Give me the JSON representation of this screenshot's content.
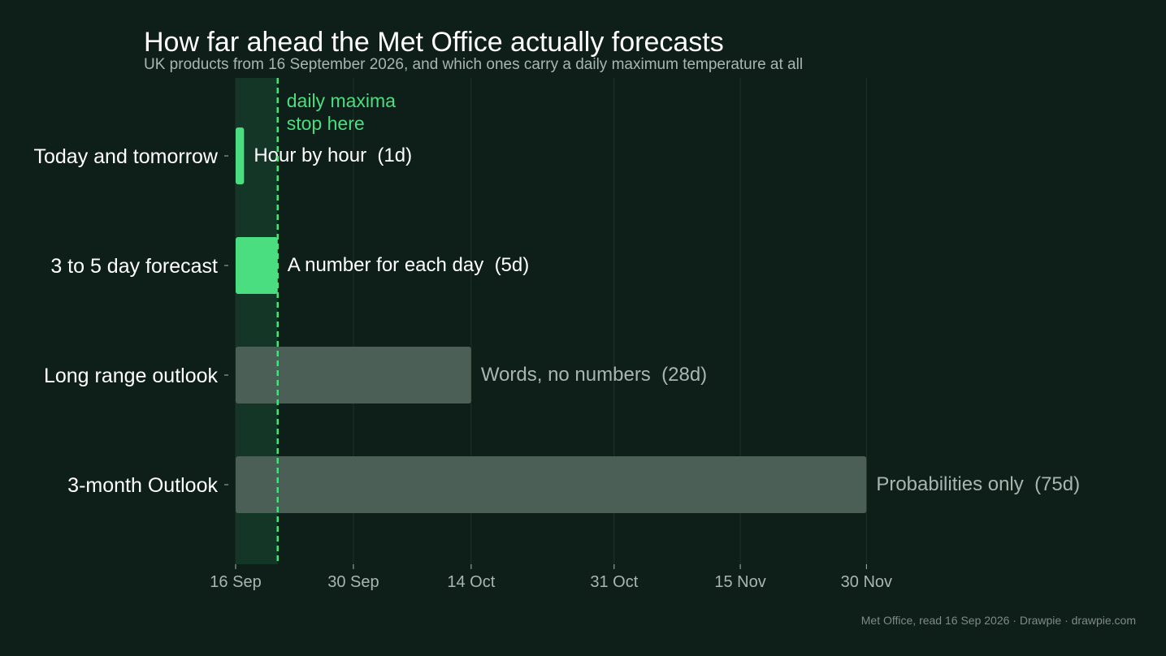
{
  "chart_data": {
    "type": "bar",
    "orientation": "horizontal",
    "title": "How far ahead the Met Office actually forecasts",
    "subtitle": "UK products from 16 September 2026, and which ones carry a daily maximum temperature at all",
    "start_date": "2026-09-16",
    "categories": [
      "Today and tomorrow",
      "3 to 5 day forecast",
      "Long range outlook",
      "3-month Outlook"
    ],
    "values": [
      1,
      5,
      28,
      75
    ],
    "bar_labels": [
      "Hour by hour  (1d)",
      "A number for each day  (5d)",
      "Words, no numbers  (28d)",
      "Probabilities only  (75d)"
    ],
    "has_daily_max": [
      true,
      true,
      false,
      false
    ],
    "x_ticks": [
      {
        "date": "2026-09-16",
        "label": "16 Sep"
      },
      {
        "date": "2026-09-30",
        "label": "30 Sep"
      },
      {
        "date": "2026-10-14",
        "label": "14 Oct"
      },
      {
        "date": "2026-10-31",
        "label": "31 Oct"
      },
      {
        "date": "2026-11-15",
        "label": "15 Nov"
      },
      {
        "date": "2026-11-30",
        "label": "30 Nov"
      }
    ],
    "xlim": [
      "2026-09-16",
      "2026-12-19"
    ],
    "reference_line": {
      "date": "2026-09-21",
      "label_lines": [
        "daily maxima",
        "stop here"
      ]
    },
    "grid": "vertical",
    "colors": {
      "background": "#0e1e18",
      "highlight_band": "#143626",
      "daily_max_bar": "#4ade80",
      "other_bar": "#4b5f56",
      "reference_line": "#4ade80",
      "grid": "#1f3229",
      "text_primary": "#ffffff",
      "text_muted": "#a9b6b0",
      "footer": "#7f8c86"
    },
    "source": "Met Office, read 16 Sep 2026  ·  Drawpie · drawpie.com"
  }
}
